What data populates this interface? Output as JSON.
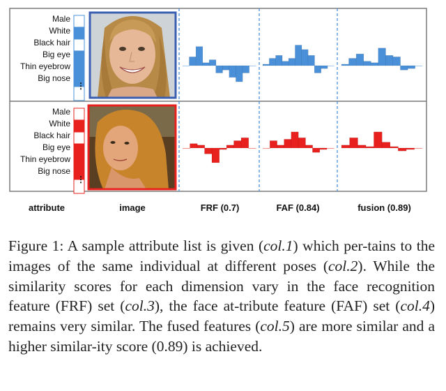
{
  "figure": {
    "row_top": {
      "attributes": [
        "Male",
        "White",
        "Black hair",
        "Big eye",
        "Thin eyebrow",
        "Big nose"
      ],
      "attribute_values": [
        0,
        1,
        0,
        1,
        1,
        1
      ],
      "color": "#4a90d9",
      "photo_border": "#3a5fb0",
      "frf_bars": [
        0.0,
        0.3,
        0.65,
        0.1,
        0.2,
        -0.25,
        -0.15,
        -0.4,
        -0.55,
        -0.25,
        0.0
      ],
      "faf_bars": [
        0.05,
        0.25,
        0.35,
        0.15,
        0.25,
        0.7,
        0.55,
        0.35,
        -0.25,
        -0.1,
        0.0
      ],
      "fusion_bars": [
        0.05,
        0.25,
        0.4,
        0.15,
        0.1,
        0.6,
        0.35,
        0.3,
        -0.15,
        -0.1,
        0.0
      ]
    },
    "row_bottom": {
      "attributes": [
        "Male",
        "White",
        "Black hair",
        "Big eye",
        "Thin eyebrow",
        "Big nose"
      ],
      "attribute_values": [
        0,
        1,
        0,
        1,
        1,
        1
      ],
      "color": "#e8201e",
      "photo_border": "#e8201e",
      "frf_bars": [
        0.0,
        0.15,
        0.1,
        -0.2,
        -0.5,
        -0.05,
        0.1,
        0.25,
        0.35,
        0.0
      ],
      "faf_bars": [
        0.0,
        0.25,
        0.1,
        0.3,
        0.55,
        0.35,
        0.1,
        -0.15,
        -0.05,
        0.0
      ],
      "fusion_bars": [
        0.1,
        0.35,
        0.1,
        0.05,
        0.55,
        0.2,
        0.05,
        -0.1,
        -0.05,
        0.0
      ]
    },
    "headers": {
      "attribute": "attribute",
      "image": "image",
      "frf": "FRF  (0.7)",
      "faf": "FAF (0.84)",
      "fusion": "fusion (0.89)"
    },
    "dots": "⋮"
  },
  "caption": {
    "p1": "Figure 1: A sample attribute list is given (",
    "p1_i": "col.1",
    "p2": ") which per-tains to the images of the same individual at different poses (",
    "p2_i": "col.2",
    "p3": "). While the similarity scores for each dimension vary in the face recognition feature (FRF) set (",
    "p3_i": "col.3",
    "p4": "), the face at-tribute feature (FAF) set (",
    "p4_i": "col.4",
    "p5": ") remains very similar. The fused features (",
    "p5_i": "col.5",
    "p6": ") are more similar and a higher similar-ity score (0.89) is achieved."
  }
}
